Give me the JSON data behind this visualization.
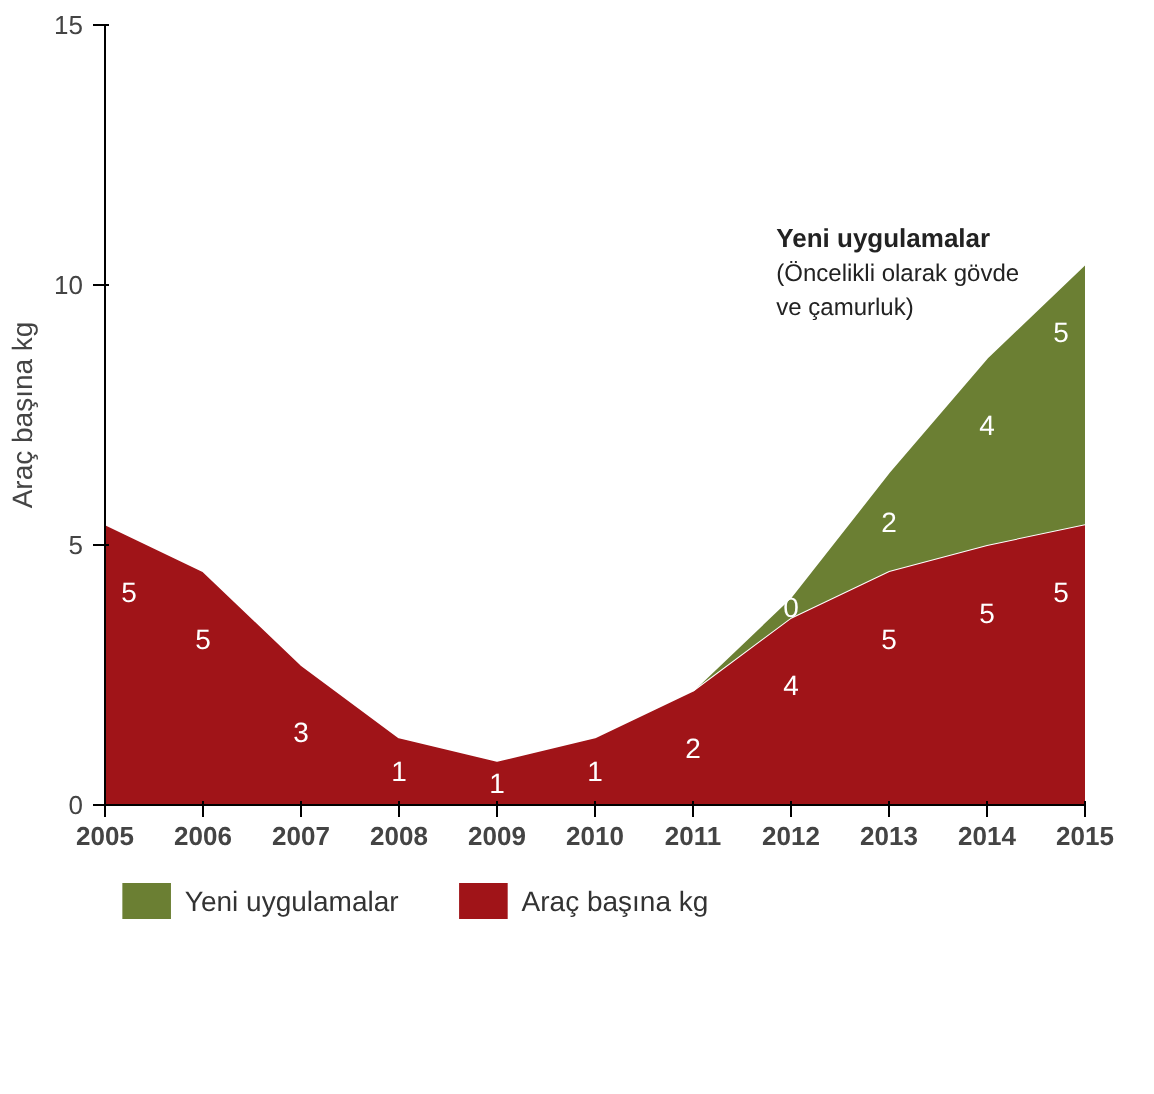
{
  "chart_data": {
    "type": "area",
    "stacked": true,
    "ylabel": "Araç başına kg",
    "categories": [
      "2005",
      "2006",
      "2007",
      "2008",
      "2009",
      "2010",
      "2011",
      "2012",
      "2013",
      "2014",
      "2015"
    ],
    "series": [
      {
        "name": "Araç başına kg",
        "color": "#a01418",
        "values": [
          5.4,
          4.5,
          2.7,
          1.3,
          0.85,
          1.3,
          2.2,
          3.6,
          4.5,
          5.0,
          5.4
        ],
        "value_labels": [
          "5",
          "5",
          "3",
          "1",
          "1",
          "1",
          "2",
          "4",
          "5",
          "5",
          "5"
        ]
      },
      {
        "name": "Yeni uygulamalar",
        "color": "#6b7f33",
        "values": [
          null,
          null,
          null,
          null,
          null,
          null,
          0,
          0.4,
          1.9,
          3.6,
          5.0
        ],
        "value_labels": [
          null,
          null,
          null,
          null,
          null,
          null,
          null,
          "0",
          "2",
          "4",
          "5"
        ]
      }
    ],
    "ylim": [
      0,
      15
    ],
    "yticks": [
      0,
      5,
      10,
      15
    ],
    "grid": false,
    "legend": "bottom",
    "annotations": [
      "Yeni uygulamalar",
      "(Öncelikli olarak gövde\nve çamurluk)"
    ]
  }
}
